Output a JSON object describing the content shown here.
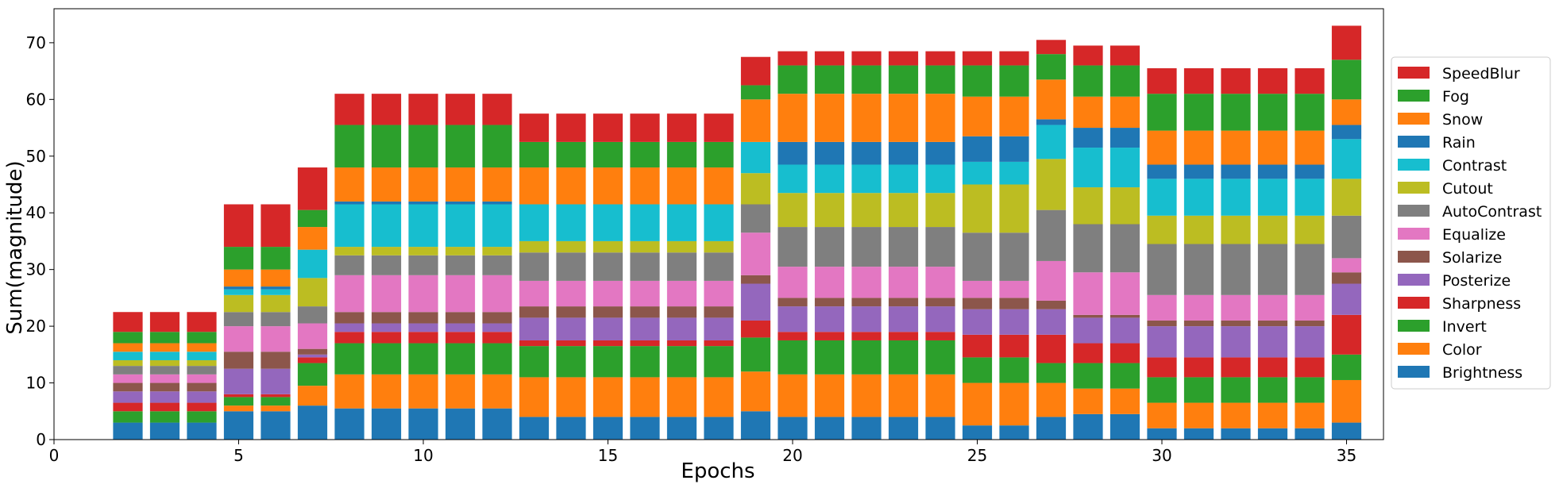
{
  "chart_data": {
    "type": "bar",
    "stacked": true,
    "title": "",
    "xlabel": "Epochs",
    "ylabel": "Sum(magnitude)",
    "xlim": [
      0,
      36
    ],
    "ylim": [
      0,
      76
    ],
    "xticks": [
      0,
      5,
      10,
      15,
      20,
      25,
      30,
      35
    ],
    "yticks": [
      0,
      10,
      20,
      30,
      40,
      50,
      60,
      70
    ],
    "legend_position": "right",
    "x": [
      2,
      3,
      4,
      5,
      6,
      7,
      8,
      9,
      10,
      11,
      12,
      13,
      14,
      15,
      16,
      17,
      18,
      19,
      20,
      21,
      22,
      23,
      24,
      25,
      26,
      27,
      28,
      29,
      30,
      31,
      32,
      33,
      34,
      35
    ],
    "series": [
      {
        "name": "Brightness",
        "color": "#1f77b4",
        "values": [
          3,
          3,
          3,
          5,
          5,
          6,
          5.5,
          5.5,
          5.5,
          5.5,
          5.5,
          4,
          4,
          4,
          4,
          4,
          4,
          5,
          4,
          4,
          4,
          4,
          4,
          2.5,
          2.5,
          4,
          4.5,
          4.5,
          2,
          2,
          2,
          2,
          2,
          3
        ]
      },
      {
        "name": "Color",
        "color": "#ff7f0e",
        "values": [
          0,
          0,
          0,
          1,
          1,
          3.5,
          6,
          6,
          6,
          6,
          6,
          7,
          7,
          7,
          7,
          7,
          7,
          7,
          7.5,
          7.5,
          7.5,
          7.5,
          7.5,
          7.5,
          7.5,
          6,
          4.5,
          4.5,
          4.5,
          4.5,
          4.5,
          4.5,
          4.5,
          7.5
        ]
      },
      {
        "name": "Invert",
        "color": "#2ca02c",
        "values": [
          2,
          2,
          2,
          1.5,
          1.5,
          4,
          5.5,
          5.5,
          5.5,
          5.5,
          5.5,
          5.5,
          5.5,
          5.5,
          5.5,
          5.5,
          5.5,
          6,
          6,
          6,
          6,
          6,
          6,
          4.5,
          4.5,
          3.5,
          4.5,
          4.5,
          4.5,
          4.5,
          4.5,
          4.5,
          4.5,
          4.5
        ]
      },
      {
        "name": "Sharpness",
        "color": "#d62728",
        "values": [
          1.5,
          1.5,
          1.5,
          0.5,
          0.5,
          1,
          2,
          2,
          2,
          2,
          2,
          1,
          1,
          1,
          1,
          1,
          1,
          3,
          1.5,
          1.5,
          1.5,
          1.5,
          1.5,
          4,
          4,
          5,
          3.5,
          3.5,
          3.5,
          3.5,
          3.5,
          3.5,
          3.5,
          7
        ]
      },
      {
        "name": "Posterize",
        "color": "#9467bd",
        "values": [
          2,
          2,
          2,
          4.5,
          4.5,
          0.5,
          1.5,
          1.5,
          1.5,
          1.5,
          1.5,
          4,
          4,
          4,
          4,
          4,
          4,
          6.5,
          4.5,
          4.5,
          4.5,
          4.5,
          4.5,
          4.5,
          4.5,
          4.5,
          4.5,
          4.5,
          5.5,
          5.5,
          5.5,
          5.5,
          5.5,
          5.5
        ]
      },
      {
        "name": "Solarize",
        "color": "#8c564b",
        "values": [
          1.5,
          1.5,
          1.5,
          3,
          3,
          1,
          2,
          2,
          2,
          2,
          2,
          2,
          2,
          2,
          2,
          2,
          2,
          1.5,
          1.5,
          1.5,
          1.5,
          1.5,
          1.5,
          2,
          2,
          1.5,
          0.5,
          0.5,
          1,
          1,
          1,
          1,
          1,
          2
        ]
      },
      {
        "name": "Equalize",
        "color": "#e377c2",
        "values": [
          1.5,
          1.5,
          1.5,
          4.5,
          4.5,
          4.5,
          6.5,
          6.5,
          6.5,
          6.5,
          6.5,
          4.5,
          4.5,
          4.5,
          4.5,
          4.5,
          4.5,
          7.5,
          5.5,
          5.5,
          5.5,
          5.5,
          5.5,
          3,
          3,
          7,
          7.5,
          7.5,
          4.5,
          4.5,
          4.5,
          4.5,
          4.5,
          2.5
        ]
      },
      {
        "name": "AutoContrast",
        "color": "#7f7f7f",
        "values": [
          1.5,
          1.5,
          1.5,
          2.5,
          2.5,
          3,
          3.5,
          3.5,
          3.5,
          3.5,
          3.5,
          5,
          5,
          5,
          5,
          5,
          5,
          5,
          7,
          7,
          7,
          7,
          7,
          8.5,
          8.5,
          9,
          8.5,
          8.5,
          9,
          9,
          9,
          9,
          9,
          7.5
        ]
      },
      {
        "name": "Cutout",
        "color": "#bcbd22",
        "values": [
          1,
          1,
          1,
          3,
          3,
          5,
          1.5,
          1.5,
          1.5,
          1.5,
          1.5,
          2,
          2,
          2,
          2,
          2,
          2,
          5.5,
          6,
          6,
          6,
          6,
          6,
          8.5,
          8.5,
          9,
          6.5,
          6.5,
          5,
          5,
          5,
          5,
          5,
          6.5
        ]
      },
      {
        "name": "Contrast",
        "color": "#17becf",
        "values": [
          1.5,
          1.5,
          1.5,
          1,
          1,
          5,
          7.5,
          7.5,
          7.5,
          7.5,
          7.5,
          6.5,
          6.5,
          6.5,
          6.5,
          6.5,
          6.5,
          5.5,
          5,
          5,
          5,
          5,
          5,
          4,
          4,
          6,
          7,
          7,
          6.5,
          6.5,
          6.5,
          6.5,
          6.5,
          7
        ]
      },
      {
        "name": "Rain",
        "color": "#1f77b4",
        "values": [
          0,
          0,
          0,
          0.5,
          0.5,
          0,
          0.5,
          0.5,
          0.5,
          0.5,
          0.5,
          0,
          0,
          0,
          0,
          0,
          0,
          0,
          4,
          4,
          4,
          4,
          4,
          4.5,
          4.5,
          1,
          3.5,
          3.5,
          2.5,
          2.5,
          2.5,
          2.5,
          2.5,
          2.5
        ]
      },
      {
        "name": "Snow",
        "color": "#ff7f0e",
        "values": [
          1.5,
          1.5,
          1.5,
          3,
          3,
          4,
          6,
          6,
          6,
          6,
          6,
          6.5,
          6.5,
          6.5,
          6.5,
          6.5,
          6.5,
          7.5,
          8.5,
          8.5,
          8.5,
          8.5,
          8.5,
          7,
          7,
          7,
          5.5,
          5.5,
          6,
          6,
          6,
          6,
          6,
          4.5
        ]
      },
      {
        "name": "Fog",
        "color": "#2ca02c",
        "values": [
          2,
          2,
          2,
          4,
          4,
          3,
          7.5,
          7.5,
          7.5,
          7.5,
          7.5,
          4.5,
          4.5,
          4.5,
          4.5,
          4.5,
          4.5,
          2.5,
          5,
          5,
          5,
          5,
          5,
          5.5,
          5.5,
          4.5,
          5.5,
          5.5,
          6.5,
          6.5,
          6.5,
          6.5,
          6.5,
          7
        ]
      },
      {
        "name": "SpeedBlur",
        "color": "#d62728",
        "values": [
          3.5,
          3.5,
          3.5,
          7.5,
          7.5,
          7.5,
          5.5,
          5.5,
          5.5,
          5.5,
          5.5,
          5,
          5,
          5,
          5,
          5,
          5,
          5,
          2.5,
          2.5,
          2.5,
          2.5,
          2.5,
          2.5,
          2.5,
          2.5,
          3.5,
          3.5,
          4.5,
          4.5,
          4.5,
          4.5,
          4.5,
          6
        ]
      }
    ]
  }
}
